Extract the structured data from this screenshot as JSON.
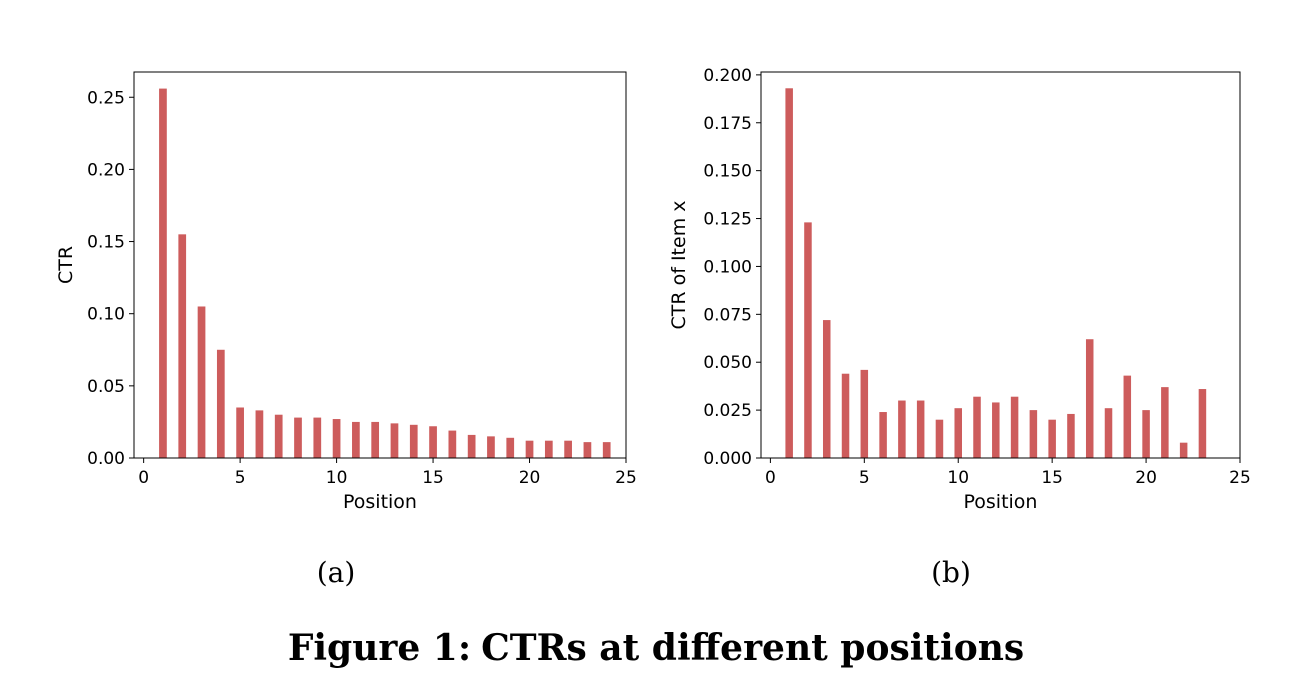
{
  "caption": {
    "figure_label": "Figure 1:",
    "text": "CTRs at different positions"
  },
  "bar_color": "#cd5c5c",
  "chart_data": [
    {
      "type": "bar",
      "panel_label": "(a)",
      "title": "",
      "xlabel": "Position",
      "ylabel": "CTR",
      "xlim": [
        -0.5,
        25.0
      ],
      "ylim": [
        0,
        0.2675
      ],
      "xticks": [
        0,
        5,
        10,
        15,
        20,
        25
      ],
      "xtick_labels": [
        "0",
        "5",
        "10",
        "15",
        "20",
        "25"
      ],
      "yticks": [
        0,
        0.05,
        0.1,
        0.15,
        0.2,
        0.25
      ],
      "ytick_labels": [
        "0.00",
        "0.05",
        "0.10",
        "0.15",
        "0.20",
        "0.25"
      ],
      "x": [
        1,
        2,
        3,
        4,
        5,
        6,
        7,
        8,
        9,
        10,
        11,
        12,
        13,
        14,
        15,
        16,
        17,
        18,
        19,
        20,
        21,
        22,
        23,
        24
      ],
      "values": [
        0.256,
        0.155,
        0.105,
        0.075,
        0.035,
        0.033,
        0.03,
        0.028,
        0.028,
        0.027,
        0.025,
        0.025,
        0.024,
        0.023,
        0.022,
        0.019,
        0.016,
        0.015,
        0.014,
        0.012,
        0.012,
        0.012,
        0.011,
        0.011
      ],
      "grid": false
    },
    {
      "type": "bar",
      "panel_label": "(b)",
      "title": "",
      "xlabel": "Position",
      "ylabel": "CTR of Item x",
      "xlim": [
        -0.5,
        25.0
      ],
      "ylim": [
        0,
        0.2015
      ],
      "xticks": [
        0,
        5,
        10,
        15,
        20,
        25
      ],
      "xtick_labels": [
        "0",
        "5",
        "10",
        "15",
        "20",
        "25"
      ],
      "yticks": [
        0,
        0.025,
        0.05,
        0.075,
        0.1,
        0.125,
        0.15,
        0.175,
        0.2
      ],
      "ytick_labels": [
        "0.000",
        "0.025",
        "0.050",
        "0.075",
        "0.100",
        "0.125",
        "0.150",
        "0.175",
        "0.200"
      ],
      "x": [
        1,
        2,
        3,
        4,
        5,
        6,
        7,
        8,
        9,
        10,
        11,
        12,
        13,
        14,
        15,
        16,
        17,
        18,
        19,
        20,
        21,
        22,
        23
      ],
      "values": [
        0.193,
        0.123,
        0.072,
        0.044,
        0.046,
        0.024,
        0.03,
        0.03,
        0.02,
        0.026,
        0.032,
        0.029,
        0.032,
        0.025,
        0.02,
        0.023,
        0.062,
        0.026,
        0.043,
        0.025,
        0.037,
        0.008,
        0.036
      ],
      "grid": false
    }
  ]
}
